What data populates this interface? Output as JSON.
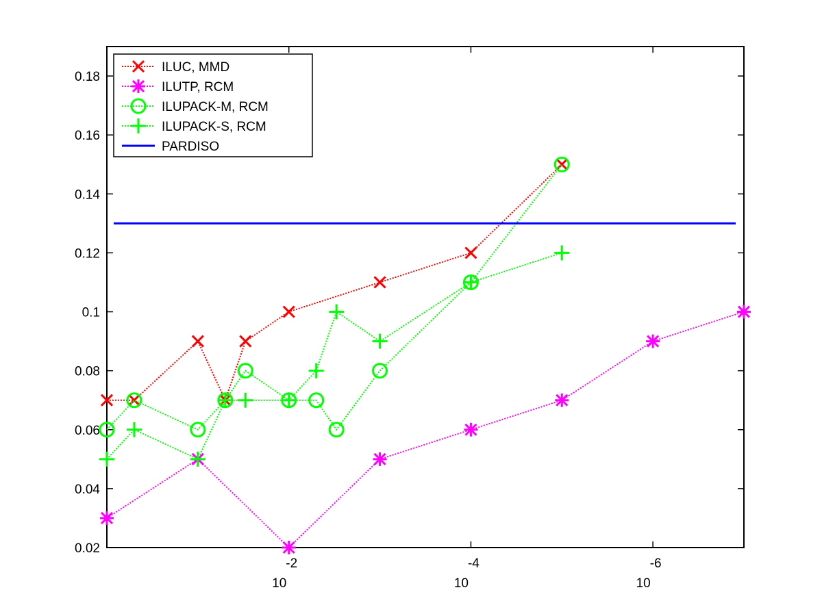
{
  "chart_data": {
    "type": "line",
    "title": "",
    "xlabel": "",
    "ylabel": "",
    "x_scale": "log",
    "x_direction": "reversed",
    "xlim": [
      1,
      1e-07
    ],
    "ylim": [
      0.02,
      0.19
    ],
    "xticks": [
      {
        "base": "10",
        "exponent": "-2",
        "value": 0.01
      },
      {
        "base": "10",
        "exponent": "-4",
        "value": 0.0001
      },
      {
        "base": "10",
        "exponent": "-6",
        "value": 1e-06
      }
    ],
    "yticks": [
      {
        "value": 0.02,
        "label": "0.02"
      },
      {
        "value": 0.04,
        "label": "0.04"
      },
      {
        "value": 0.06,
        "label": "0.06"
      },
      {
        "value": 0.08,
        "label": "0.08"
      },
      {
        "value": 0.1,
        "label": "0.1"
      },
      {
        "value": 0.12,
        "label": "0.12"
      },
      {
        "value": 0.14,
        "label": "0.14"
      },
      {
        "value": 0.16,
        "label": "0.16"
      },
      {
        "value": 0.18,
        "label": "0.18"
      }
    ],
    "grid": false,
    "legend_position": "top-left",
    "series": [
      {
        "name": "ILUC, MMD",
        "color": "#ff0000",
        "marker": "x",
        "line": "dotted",
        "x": [
          1.0,
          0.5,
          0.1,
          0.05,
          0.03,
          0.01,
          0.001,
          0.0001,
          1e-05
        ],
        "y": [
          0.07,
          0.07,
          0.09,
          0.07,
          0.09,
          0.1,
          0.11,
          0.12,
          0.15
        ]
      },
      {
        "name": "ILUTP, RCM",
        "color": "#ff00ff",
        "marker": "asterisk",
        "line": "dotted",
        "x": [
          1.0,
          0.1,
          0.01,
          0.001,
          0.0001,
          1e-05,
          1e-06,
          1e-07
        ],
        "y": [
          0.03,
          0.05,
          0.02,
          0.05,
          0.06,
          0.07,
          0.09,
          0.1
        ]
      },
      {
        "name": "ILUPACK-M, RCM",
        "color": "#00ff00",
        "marker": "circle",
        "line": "dotted",
        "x": [
          1.0,
          0.5,
          0.1,
          0.05,
          0.03,
          0.01,
          0.005,
          0.003,
          0.001,
          0.0001,
          1e-05
        ],
        "y": [
          0.06,
          0.07,
          0.06,
          0.07,
          0.08,
          0.07,
          0.07,
          0.06,
          0.08,
          0.11,
          0.15
        ]
      },
      {
        "name": "ILUPACK-S, RCM",
        "color": "#00ff00",
        "marker": "plus",
        "line": "dotted",
        "x": [
          1.0,
          0.5,
          0.1,
          0.05,
          0.03,
          0.01,
          0.005,
          0.003,
          0.001,
          0.0001,
          1e-05
        ],
        "y": [
          0.05,
          0.06,
          0.05,
          0.07,
          0.07,
          0.07,
          0.08,
          0.1,
          0.09,
          0.11,
          0.12
        ]
      },
      {
        "name": "PARDISO",
        "color": "#0000ff",
        "marker": "none",
        "line": "solid",
        "constant_y": 0.13
      }
    ]
  }
}
